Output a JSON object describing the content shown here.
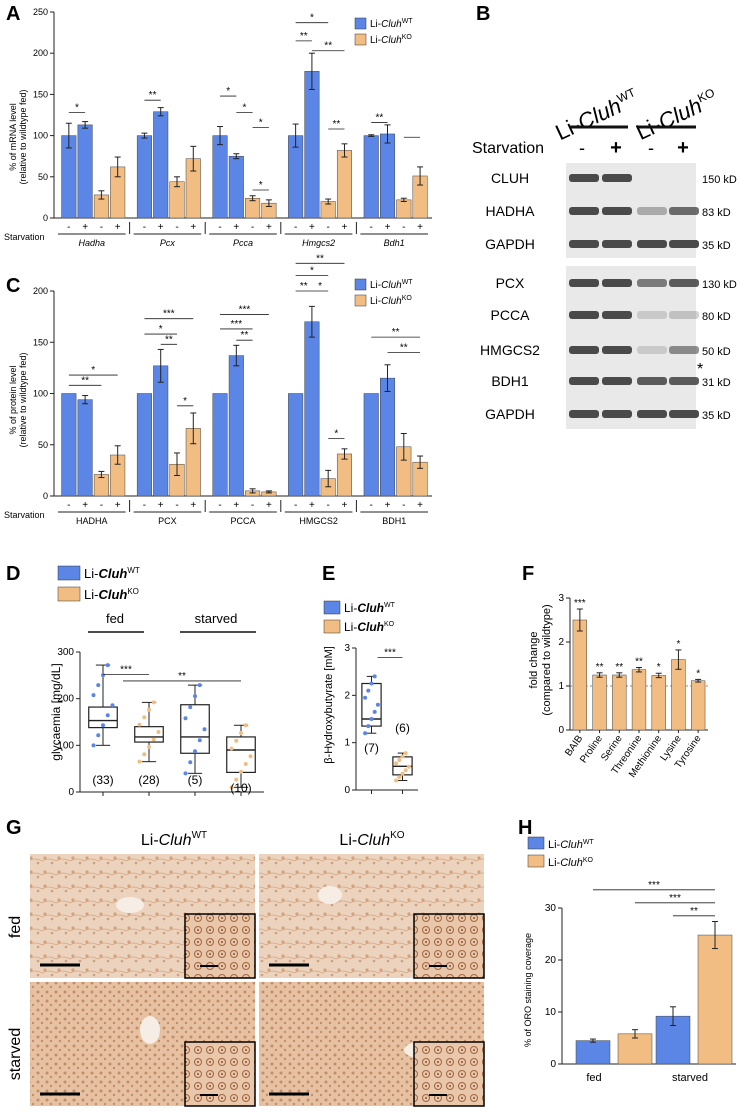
{
  "colors": {
    "wt": "#5b86e5",
    "ko": "#f2bd82",
    "axis": "#222222",
    "blot_bg": "#e9e9e9",
    "band": "#4a4a4a",
    "tissue": "#e8c9ad"
  },
  "legend": {
    "wt_prefix": "Li-",
    "wt_gene": "Cluh",
    "wt_sup": "WT",
    "ko_prefix": "Li-",
    "ko_gene": "Cluh",
    "ko_sup": "KO"
  },
  "panelA": {
    "letter": "A",
    "ylabel1": "% of mRNA level",
    "ylabel2": "(relative to wildtype fed)",
    "starvation_label": "Starvation",
    "signs": [
      "-",
      "+",
      "-",
      "+"
    ],
    "sig_labels": [
      "*",
      "**",
      "*",
      "*",
      "*",
      "*",
      "**",
      "*",
      "**",
      "**",
      "**"
    ]
  },
  "panelB": {
    "letter": "B",
    "group_wt_prefix": "Li-",
    "group_wt_gene": "Cluh",
    "group_wt_sup": "WT",
    "group_ko_prefix": "Li-",
    "group_ko_gene": "Cluh",
    "group_ko_sup": "KO",
    "starvation_label": "Starvation",
    "signs": [
      "-",
      "+",
      "-",
      "+"
    ],
    "asterisk": "*",
    "rows": [
      {
        "name": "CLUH",
        "size": "150 kD"
      },
      {
        "name": "HADHA",
        "size": "83 kD"
      },
      {
        "name": "GAPDH",
        "size": "35 kD"
      },
      {
        "name": "PCX",
        "size": "130 kD"
      },
      {
        "name": "PCCA",
        "size": "80 kD"
      },
      {
        "name": "HMGCS2",
        "size": "50 kD"
      },
      {
        "name": "BDH1",
        "size": "31 kD"
      },
      {
        "name": "GAPDH",
        "size": "35 kD"
      }
    ]
  },
  "panelC": {
    "letter": "C",
    "ylabel1": "% of protein level",
    "ylabel2": "(relative to wildtype fed)",
    "starvation_label": "Starvation",
    "signs": [
      "-",
      "+",
      "-",
      "+"
    ],
    "sig_labels": [
      "*",
      "**",
      "***",
      "*",
      "**",
      "*",
      "***",
      "***",
      "**",
      "**",
      "*",
      "*",
      "**",
      "*",
      "**",
      "**"
    ]
  },
  "panelD": {
    "letter": "D",
    "ylabel": "glycaemia [mg/dL]",
    "fed_label": "fed",
    "starved_label": "starved",
    "sig1": "***",
    "sig2": "**",
    "ns": [
      "(33)",
      "(28)",
      "(5)",
      "(10)"
    ]
  },
  "panelE": {
    "letter": "E",
    "ylabel": "β-Hydroxybutyrate [mM]",
    "sig": "***",
    "ns": [
      "(7)",
      "(6)"
    ]
  },
  "panelF": {
    "letter": "F",
    "ylabel1": "fold change",
    "ylabel2": "(compared to wildtype)"
  },
  "panelG": {
    "letter": "G",
    "col_wt_prefix": "Li-",
    "col_wt_gene": "Cluh",
    "col_wt_sup": "WT",
    "col_ko_prefix": "Li-",
    "col_ko_gene": "Cluh",
    "col_ko_sup": "KO",
    "row_fed": "fed",
    "row_starved": "starved"
  },
  "panelH": {
    "letter": "H",
    "ylabel": "% of ORO staining coverage",
    "fed_label": "fed",
    "starved_label": "starved",
    "sig_labels": [
      "***",
      "***",
      "**"
    ]
  },
  "chart_data": [
    {
      "type": "bar",
      "panel": "A",
      "categories": [
        "Hadha",
        "Pcx",
        "Pcca",
        "Hmgcs2",
        "Bdh1"
      ],
      "conditions": [
        "WT fed",
        "WT starved",
        "KO fed",
        "KO starved"
      ],
      "ylim": [
        0,
        250
      ],
      "yticks": [
        0,
        50,
        100,
        150,
        200,
        250
      ],
      "series": [
        {
          "name": "Li-CluhWT",
          "values": [
            [
              100,
              113
            ],
            [
              100,
              129
            ],
            [
              100,
              75
            ],
            [
              100,
              178
            ],
            [
              100,
              102
            ]
          ],
          "errors": [
            [
              15,
              4
            ],
            [
              3,
              5
            ],
            [
              11,
              3
            ],
            [
              14,
              22
            ],
            [
              1,
              11
            ]
          ]
        },
        {
          "name": "Li-CluhKO",
          "values": [
            [
              28,
              62
            ],
            [
              44,
              72
            ],
            [
              24,
              18
            ],
            [
              20,
              82
            ],
            [
              22,
              51
            ]
          ],
          "errors": [
            [
              5,
              12
            ],
            [
              6,
              15
            ],
            [
              3,
              4
            ],
            [
              3,
              8
            ],
            [
              2,
              11
            ]
          ]
        }
      ]
    },
    {
      "type": "bar",
      "panel": "C",
      "categories": [
        "HADHA",
        "PCX",
        "PCCA",
        "HMGCS2",
        "BDH1"
      ],
      "conditions": [
        "WT fed",
        "WT starved",
        "KO fed",
        "KO starved"
      ],
      "ylim": [
        0,
        200
      ],
      "yticks": [
        0,
        50,
        100,
        150,
        200
      ],
      "series": [
        {
          "name": "Li-CluhWT",
          "values": [
            [
              100,
              94
            ],
            [
              100,
              127
            ],
            [
              100,
              137
            ],
            [
              100,
              170
            ],
            [
              100,
              115
            ]
          ],
          "errors": [
            [
              0,
              4
            ],
            [
              0,
              16
            ],
            [
              0,
              10
            ],
            [
              0,
              15
            ],
            [
              0,
              13
            ]
          ]
        },
        {
          "name": "Li-CluhKO",
          "values": [
            [
              21,
              40
            ],
            [
              31,
              66
            ],
            [
              5,
              4
            ],
            [
              17,
              41
            ],
            [
              48,
              33
            ]
          ],
          "errors": [
            [
              3,
              9
            ],
            [
              11,
              15
            ],
            [
              2,
              1
            ],
            [
              8,
              5
            ],
            [
              13,
              6
            ]
          ]
        }
      ]
    },
    {
      "type": "box",
      "panel": "D",
      "groups": [
        "WT fed",
        "KO fed",
        "WT starved",
        "KO starved"
      ],
      "ylim": [
        0,
        300
      ],
      "yticks": [
        0,
        100,
        200,
        300
      ],
      "boxes": [
        {
          "min": 100,
          "q1": 138,
          "median": 153,
          "q3": 182,
          "max": 272
        },
        {
          "min": 65,
          "q1": 107,
          "median": 118,
          "q3": 140,
          "max": 192
        },
        {
          "min": 40,
          "q1": 83,
          "median": 118,
          "q3": 187,
          "max": 229
        },
        {
          "min": 10,
          "q1": 42,
          "median": 90,
          "q3": 118,
          "max": 143
        }
      ]
    },
    {
      "type": "box",
      "panel": "E",
      "groups": [
        "WT",
        "KO"
      ],
      "ylim": [
        0,
        3
      ],
      "yticks": [
        0,
        1,
        2,
        3
      ],
      "boxes": [
        {
          "min": 1.2,
          "q1": 1.35,
          "median": 1.5,
          "q3": 2.25,
          "max": 2.4
        },
        {
          "min": 0.2,
          "q1": 0.32,
          "median": 0.5,
          "q3": 0.7,
          "max": 0.78
        }
      ]
    },
    {
      "type": "bar",
      "panel": "F",
      "categories": [
        "BAIB",
        "Proline",
        "Serine",
        "Threonine",
        "Methionine",
        "Lysine",
        "Tyrosine"
      ],
      "values": [
        2.5,
        1.25,
        1.25,
        1.37,
        1.24,
        1.6,
        1.12
      ],
      "errors": [
        0.25,
        0.05,
        0.05,
        0.05,
        0.05,
        0.22,
        0.03
      ],
      "sig": [
        "***",
        "**",
        "**",
        "**",
        "*",
        "*",
        "*"
      ],
      "ylim": [
        0,
        3
      ],
      "yticks": [
        0,
        1,
        2,
        3
      ],
      "reference_line": 1
    },
    {
      "type": "bar",
      "panel": "H",
      "categories": [
        "fed",
        "starved"
      ],
      "ylim": [
        0,
        30
      ],
      "yticks": [
        0,
        10,
        20,
        30
      ],
      "series": [
        {
          "name": "Li-CluhWT",
          "values": [
            4.5,
            9.2
          ],
          "errors": [
            0.3,
            1.8
          ]
        },
        {
          "name": "Li-CluhKO",
          "values": [
            5.8,
            24.8
          ],
          "errors": [
            0.8,
            2.6
          ]
        }
      ]
    }
  ]
}
